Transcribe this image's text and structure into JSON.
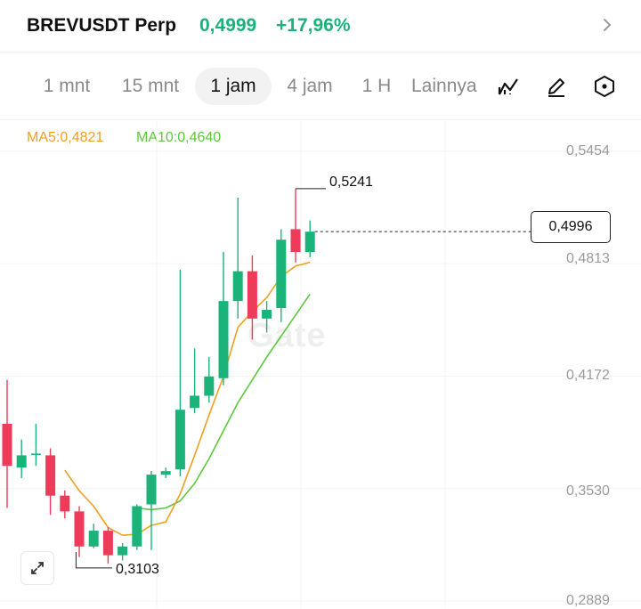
{
  "header": {
    "pair": "BREVUSDT Perp",
    "price": "0,4999",
    "change": "+17,96%",
    "up_color": "#1bb37a",
    "chevron_icon": "chevron-right-icon"
  },
  "tabs": [
    {
      "label": "1 mnt",
      "active": false
    },
    {
      "label": "15 mnt",
      "active": false
    },
    {
      "label": "1 jam",
      "active": true
    },
    {
      "label": "4 jam",
      "active": false
    },
    {
      "label": "1 H",
      "active": false
    },
    {
      "label": "Lainnya",
      "active": false
    }
  ],
  "tools": [
    "indicator-icon",
    "pencil-icon",
    "settings-icon"
  ],
  "indicators": {
    "ma5": "MA5:0,4821",
    "ma10": "MA10:0,4640",
    "ma5_color": "#f0a020",
    "ma10_color": "#5cc83c"
  },
  "watermark": "Gate",
  "chart_data": {
    "type": "candlestick",
    "interval": "1 jam",
    "y_ticks": [
      "0,5454",
      "0,4813",
      "0,4172",
      "0,3530",
      "0,2889"
    ],
    "ylim": [
      0.2889,
      0.5454
    ],
    "current_price": "0,4996",
    "current_price_value": 0.4996,
    "high_annotation": {
      "label": "0,5241",
      "value": 0.5241
    },
    "low_annotation": {
      "label": "0,3103",
      "value": 0.3103
    },
    "up_color": "#1bb37a",
    "down_color": "#ee3b5a",
    "candles": [
      {
        "o": 0.39,
        "h": 0.415,
        "l": 0.342,
        "c": 0.366
      },
      {
        "o": 0.365,
        "h": 0.381,
        "l": 0.359,
        "c": 0.372
      },
      {
        "o": 0.373,
        "h": 0.39,
        "l": 0.366,
        "c": 0.373
      },
      {
        "o": 0.372,
        "h": 0.376,
        "l": 0.338,
        "c": 0.349
      },
      {
        "o": 0.349,
        "h": 0.352,
        "l": 0.336,
        "c": 0.34
      },
      {
        "o": 0.34,
        "h": 0.343,
        "l": 0.314,
        "c": 0.32
      },
      {
        "o": 0.32,
        "h": 0.333,
        "l": 0.319,
        "c": 0.329
      },
      {
        "o": 0.329,
        "h": 0.331,
        "l": 0.3103,
        "c": 0.315
      },
      {
        "o": 0.315,
        "h": 0.322,
        "l": 0.312,
        "c": 0.32
      },
      {
        "o": 0.32,
        "h": 0.344,
        "l": 0.318,
        "c": 0.343
      },
      {
        "o": 0.344,
        "h": 0.363,
        "l": 0.318,
        "c": 0.361
      },
      {
        "o": 0.361,
        "h": 0.365,
        "l": 0.359,
        "c": 0.363
      },
      {
        "o": 0.364,
        "h": 0.478,
        "l": 0.36,
        "c": 0.398
      },
      {
        "o": 0.399,
        "h": 0.433,
        "l": 0.396,
        "c": 0.406
      },
      {
        "o": 0.406,
        "h": 0.428,
        "l": 0.402,
        "c": 0.417
      },
      {
        "o": 0.416,
        "h": 0.488,
        "l": 0.412,
        "c": 0.46
      },
      {
        "o": 0.46,
        "h": 0.519,
        "l": 0.45,
        "c": 0.477
      },
      {
        "o": 0.477,
        "h": 0.486,
        "l": 0.438,
        "c": 0.45
      },
      {
        "o": 0.45,
        "h": 0.46,
        "l": 0.442,
        "c": 0.455
      },
      {
        "o": 0.456,
        "h": 0.501,
        "l": 0.448,
        "c": 0.495
      },
      {
        "o": 0.501,
        "h": 0.5241,
        "l": 0.482,
        "c": 0.488
      },
      {
        "o": 0.488,
        "h": 0.506,
        "l": 0.485,
        "c": 0.4996
      }
    ],
    "ma5": [
      null,
      null,
      null,
      null,
      0.3635,
      0.3518,
      0.343,
      0.3308,
      0.3264,
      0.327,
      0.332,
      0.334,
      0.35,
      0.372,
      0.395,
      0.417,
      0.445,
      0.454,
      0.462,
      0.474,
      0.48,
      0.4821
    ],
    "ma10": [
      null,
      null,
      null,
      null,
      null,
      null,
      null,
      null,
      null,
      0.342,
      0.341,
      0.342,
      0.346,
      0.356,
      0.37,
      0.386,
      0.402,
      0.415,
      0.428,
      0.44,
      0.452,
      0.464
    ],
    "grid": true
  }
}
